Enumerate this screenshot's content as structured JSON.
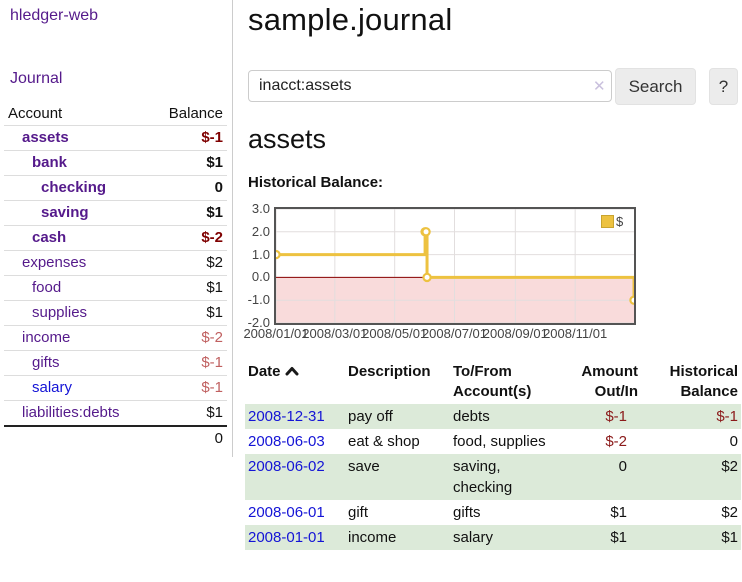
{
  "app": {
    "brand": "hledger-web",
    "nav_journal": "Journal"
  },
  "sidebar": {
    "columns": {
      "account": "Account",
      "balance": "Balance"
    },
    "accounts": [
      {
        "name": "assets",
        "depth": 1,
        "bold": true,
        "name_style": "purple",
        "balance": "$-1",
        "balance_style": "neg-strong"
      },
      {
        "name": "bank",
        "depth": 2,
        "bold": true,
        "name_style": "purple",
        "balance": "$1",
        "balance_style": "plain"
      },
      {
        "name": "checking",
        "depth": 3,
        "bold": true,
        "name_style": "purple",
        "balance": "0",
        "balance_style": "plain"
      },
      {
        "name": "saving",
        "depth": 3,
        "bold": true,
        "name_style": "purple",
        "balance": "$1",
        "balance_style": "plain"
      },
      {
        "name": "cash",
        "depth": 2,
        "bold": true,
        "name_style": "purple",
        "balance": "$-2",
        "balance_style": "neg-strong"
      },
      {
        "name": "expenses",
        "depth": 1,
        "bold": false,
        "name_style": "purple",
        "balance": "$2",
        "balance_style": "plain"
      },
      {
        "name": "food",
        "depth": 2,
        "bold": false,
        "name_style": "purple",
        "balance": "$1",
        "balance_style": "plain"
      },
      {
        "name": "supplies",
        "depth": 2,
        "bold": false,
        "name_style": "purple",
        "balance": "$1",
        "balance_style": "plain"
      },
      {
        "name": "income",
        "depth": 1,
        "bold": false,
        "name_style": "purple",
        "balance": "$-2",
        "balance_style": "neg-muted"
      },
      {
        "name": "gifts",
        "depth": 2,
        "bold": false,
        "name_style": "purple",
        "balance": "$-1",
        "balance_style": "neg-muted"
      },
      {
        "name": "salary",
        "depth": 2,
        "bold": false,
        "name_style": "blue",
        "balance": "$-1",
        "balance_style": "neg-muted"
      },
      {
        "name": "liabilities:debts",
        "depth": 1,
        "bold": false,
        "name_style": "purple",
        "balance": "$1",
        "balance_style": "plain"
      }
    ],
    "total": "0"
  },
  "header": {
    "title": "sample.journal"
  },
  "search": {
    "value": "inacct:assets",
    "clear_icon": "✕",
    "button_label": "Search",
    "help_label": "?"
  },
  "account_page": {
    "heading": "assets",
    "chart_title": "Historical Balance:"
  },
  "chart_data": {
    "type": "line",
    "step": true,
    "title": "Historical Balance",
    "series": [
      {
        "name": "$",
        "points": [
          [
            "2008-01-01",
            1
          ],
          [
            "2008-06-01",
            2
          ],
          [
            "2008-06-02",
            2
          ],
          [
            "2008-06-03",
            0
          ],
          [
            "2008-12-31",
            -1
          ]
        ]
      }
    ],
    "ylim": [
      -2,
      3
    ],
    "yticks": [
      3,
      2,
      1,
      0,
      -1,
      -2
    ],
    "ytick_labels": [
      "3.0",
      "2.0",
      "1.0",
      "0.0",
      "-1.0",
      "-2.0"
    ],
    "xticks": [
      "2008-01-01",
      "2008-03-01",
      "2008-05-01",
      "2008-07-01",
      "2008-09-01",
      "2008-11-01"
    ],
    "xtick_labels": [
      "2008/01/01",
      "2008/03/01",
      "2008/05/01",
      "2008/07/01",
      "2008/09/01",
      "2008/11/01"
    ],
    "legend": {
      "position": "top-right",
      "label": "$"
    },
    "grid": true,
    "line_color": "#edc240",
    "negative_region_color": "#f9dbdb",
    "zero_line_color": "#8b0000"
  },
  "register": {
    "columns": [
      "Date",
      "Description",
      "To/From Account(s)",
      "Amount Out/In",
      "Historical Balance"
    ],
    "sort": "ascending",
    "rows": [
      {
        "date": "2008-12-31",
        "description": "pay off",
        "accounts": "debts",
        "amount": "$-1",
        "amount_neg": true,
        "balance": "$-1",
        "balance_neg": true,
        "shaded": true
      },
      {
        "date": "2008-06-03",
        "description": "eat & shop",
        "accounts": "food, supplies",
        "amount": "$-2",
        "amount_neg": true,
        "balance": "0",
        "balance_neg": false,
        "shaded": false
      },
      {
        "date": "2008-06-02",
        "description": "save",
        "accounts": "saving, checking",
        "amount": "0",
        "amount_neg": false,
        "balance": "$2",
        "balance_neg": false,
        "shaded": true
      },
      {
        "date": "2008-06-01",
        "description": "gift",
        "accounts": "gifts",
        "amount": "$1",
        "amount_neg": false,
        "balance": "$2",
        "balance_neg": false,
        "shaded": false
      },
      {
        "date": "2008-01-01",
        "description": "income",
        "accounts": "salary",
        "amount": "$1",
        "amount_neg": false,
        "balance": "$1",
        "balance_neg": false,
        "shaded": true
      }
    ]
  },
  "colors": {
    "purple": "#551a8b",
    "blue": "#1414d6",
    "neg_strong": "#7f0000",
    "neg_muted": "#c06060",
    "table_neg": "#8b1a1a",
    "row_shade": "#dcead9",
    "chart_line": "#edc240",
    "chart_negative_fill": "#f9dbdb",
    "zero_line": "#8b0000"
  }
}
